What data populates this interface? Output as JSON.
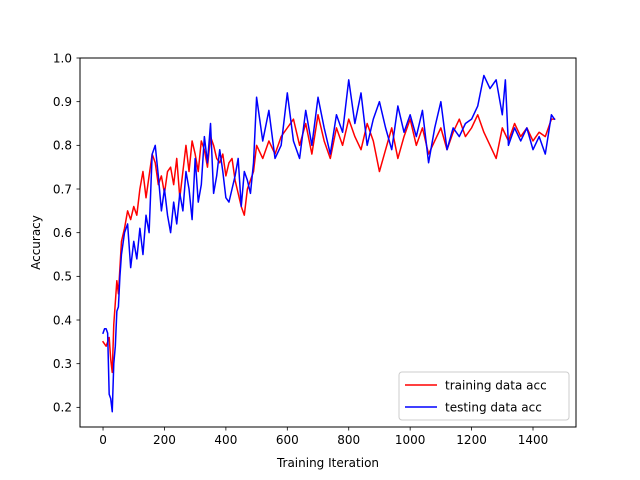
{
  "chart_data": {
    "type": "line",
    "title": "",
    "xlabel": "Training Iteration",
    "ylabel": "Accuracy",
    "xlim": [
      -75,
      1540
    ],
    "ylim": [
      0.155,
      1.0
    ],
    "xticks": [
      0,
      200,
      400,
      600,
      800,
      1000,
      1200,
      1400
    ],
    "yticks": [
      0.2,
      0.3,
      0.4,
      0.5,
      0.6,
      0.7,
      0.8,
      0.9,
      1.0
    ],
    "xtick_labels": [
      "0",
      "200",
      "400",
      "600",
      "800",
      "1000",
      "1200",
      "1400"
    ],
    "ytick_labels": [
      "0.2",
      "0.3",
      "0.4",
      "0.5",
      "0.6",
      "0.7",
      "0.8",
      "0.9",
      "1.0"
    ],
    "grid": false,
    "legend_position": "lower-right",
    "series": [
      {
        "name": "training data acc",
        "color": "#ff0000",
        "x": [
          0,
          10,
          20,
          25,
          30,
          35,
          40,
          45,
          50,
          55,
          60,
          70,
          80,
          90,
          100,
          110,
          120,
          130,
          140,
          150,
          160,
          170,
          180,
          190,
          200,
          210,
          220,
          230,
          240,
          250,
          260,
          270,
          280,
          290,
          300,
          310,
          320,
          330,
          340,
          350,
          360,
          370,
          380,
          390,
          400,
          410,
          420,
          430,
          440,
          450,
          460,
          470,
          480,
          490,
          500,
          520,
          540,
          560,
          580,
          600,
          620,
          640,
          660,
          680,
          700,
          720,
          740,
          760,
          780,
          800,
          820,
          840,
          860,
          880,
          900,
          920,
          940,
          960,
          980,
          1000,
          1020,
          1040,
          1060,
          1080,
          1100,
          1120,
          1140,
          1160,
          1180,
          1200,
          1220,
          1240,
          1260,
          1280,
          1300,
          1320,
          1340,
          1360,
          1380,
          1400,
          1420,
          1440,
          1460,
          1470
        ],
        "values": [
          0.35,
          0.34,
          0.36,
          0.31,
          0.28,
          0.39,
          0.44,
          0.49,
          0.46,
          0.52,
          0.58,
          0.61,
          0.65,
          0.63,
          0.66,
          0.64,
          0.7,
          0.74,
          0.68,
          0.73,
          0.78,
          0.76,
          0.71,
          0.73,
          0.69,
          0.74,
          0.75,
          0.71,
          0.77,
          0.68,
          0.74,
          0.8,
          0.74,
          0.81,
          0.78,
          0.74,
          0.81,
          0.79,
          0.75,
          0.82,
          0.8,
          0.77,
          0.76,
          0.78,
          0.73,
          0.76,
          0.77,
          0.72,
          0.69,
          0.66,
          0.64,
          0.7,
          0.72,
          0.74,
          0.8,
          0.77,
          0.81,
          0.78,
          0.82,
          0.84,
          0.86,
          0.8,
          0.85,
          0.78,
          0.87,
          0.81,
          0.77,
          0.84,
          0.8,
          0.86,
          0.82,
          0.79,
          0.85,
          0.81,
          0.74,
          0.79,
          0.84,
          0.77,
          0.82,
          0.86,
          0.8,
          0.84,
          0.78,
          0.81,
          0.84,
          0.79,
          0.83,
          0.86,
          0.82,
          0.84,
          0.87,
          0.83,
          0.8,
          0.77,
          0.84,
          0.81,
          0.85,
          0.82,
          0.84,
          0.81,
          0.83,
          0.82,
          0.86,
          0.86
        ]
      },
      {
        "name": "testing data acc",
        "color": "#0000ff",
        "x": [
          0,
          5,
          10,
          15,
          20,
          25,
          30,
          35,
          40,
          45,
          50,
          55,
          60,
          70,
          80,
          90,
          100,
          110,
          120,
          130,
          140,
          150,
          160,
          170,
          180,
          190,
          200,
          210,
          220,
          230,
          240,
          250,
          260,
          270,
          280,
          290,
          300,
          310,
          320,
          330,
          340,
          350,
          360,
          370,
          380,
          390,
          400,
          410,
          420,
          430,
          440,
          450,
          460,
          470,
          480,
          490,
          500,
          510,
          520,
          540,
          560,
          580,
          600,
          620,
          640,
          660,
          680,
          700,
          720,
          740,
          760,
          780,
          800,
          820,
          840,
          860,
          880,
          900,
          920,
          940,
          960,
          980,
          1000,
          1020,
          1040,
          1060,
          1080,
          1100,
          1120,
          1140,
          1160,
          1180,
          1200,
          1220,
          1240,
          1260,
          1280,
          1300,
          1310,
          1320,
          1340,
          1360,
          1380,
          1400,
          1420,
          1440,
          1460,
          1470
        ],
        "values": [
          0.37,
          0.38,
          0.38,
          0.37,
          0.23,
          0.22,
          0.19,
          0.3,
          0.34,
          0.42,
          0.43,
          0.5,
          0.55,
          0.6,
          0.62,
          0.52,
          0.58,
          0.54,
          0.61,
          0.55,
          0.64,
          0.6,
          0.78,
          0.8,
          0.73,
          0.65,
          0.7,
          0.64,
          0.6,
          0.67,
          0.62,
          0.69,
          0.65,
          0.74,
          0.7,
          0.63,
          0.77,
          0.67,
          0.71,
          0.82,
          0.76,
          0.85,
          0.69,
          0.73,
          0.79,
          0.74,
          0.68,
          0.67,
          0.7,
          0.73,
          0.77,
          0.66,
          0.74,
          0.72,
          0.69,
          0.76,
          0.91,
          0.86,
          0.81,
          0.88,
          0.77,
          0.8,
          0.92,
          0.81,
          0.77,
          0.88,
          0.8,
          0.91,
          0.84,
          0.78,
          0.87,
          0.83,
          0.95,
          0.85,
          0.92,
          0.8,
          0.86,
          0.9,
          0.84,
          0.79,
          0.89,
          0.83,
          0.87,
          0.82,
          0.88,
          0.76,
          0.84,
          0.9,
          0.79,
          0.84,
          0.82,
          0.85,
          0.86,
          0.89,
          0.96,
          0.93,
          0.95,
          0.87,
          0.95,
          0.8,
          0.84,
          0.81,
          0.84,
          0.79,
          0.82,
          0.78,
          0.87,
          0.86
        ]
      }
    ]
  }
}
